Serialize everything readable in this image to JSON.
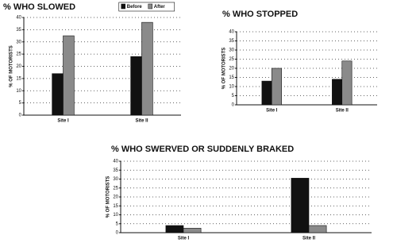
{
  "chart_data": [
    {
      "type": "bar",
      "title": "% WHO SLOWED",
      "y_label": "% OF MOTORISTS",
      "categories": [
        "Site I",
        "Site II"
      ],
      "series": [
        {
          "name": "Before",
          "color": "#111111",
          "values": [
            17,
            24
          ]
        },
        {
          "name": "After",
          "color": "#8a8a8a",
          "values": [
            32.5,
            38
          ]
        }
      ],
      "ylim": [
        0,
        40
      ],
      "yticks": [
        0,
        5,
        10,
        15,
        20,
        25,
        30,
        35,
        40
      ],
      "grid": true,
      "legend": "top-right"
    },
    {
      "type": "bar",
      "title": "% WHO STOPPED",
      "y_label": "% OF MOTORISTS",
      "categories": [
        "Site I",
        "Site II"
      ],
      "series": [
        {
          "color": "#111111",
          "values": [
            13,
            14
          ]
        },
        {
          "color": "#8a8a8a",
          "values": [
            20,
            24
          ]
        }
      ],
      "ylim": [
        0,
        40
      ],
      "yticks": [
        0,
        5,
        10,
        15,
        20,
        25,
        30,
        35,
        40
      ],
      "grid": true
    },
    {
      "type": "bar",
      "title": "% WHO SWERVED OR SUDDENLY BRAKED",
      "y_label": "% OF MOTORISTS",
      "categories": [
        "Site I",
        "Site II"
      ],
      "series": [
        {
          "color": "#111111",
          "values": [
            4,
            30.5
          ]
        },
        {
          "color": "#8a8a8a",
          "values": [
            2.5,
            4
          ]
        }
      ],
      "ylim": [
        0,
        40
      ],
      "yticks": [
        0,
        5,
        10,
        15,
        20,
        25,
        30,
        35,
        40
      ],
      "grid": true
    }
  ]
}
